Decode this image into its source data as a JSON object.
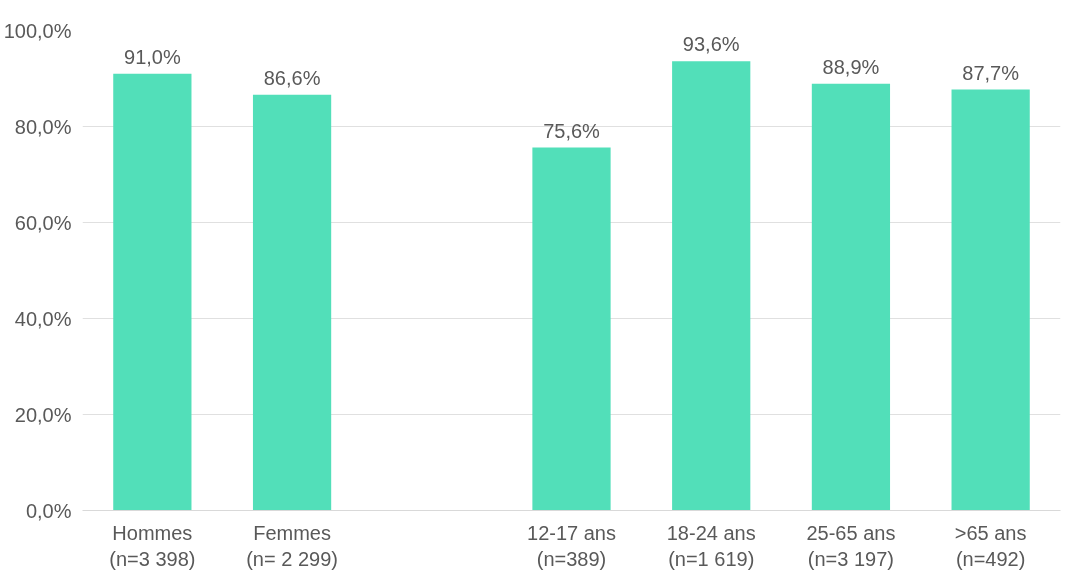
{
  "chart_data": {
    "type": "bar",
    "categories": [
      "Hommes\n(n=3 398)",
      "Femmes\n(n= 2 299)",
      null,
      "12-17 ans\n(n=389)",
      "18-24 ans\n(n=1 619)",
      "25-65 ans\n(n=3 197)",
      ">65 ans\n(n=492)"
    ],
    "values": [
      91.0,
      86.6,
      null,
      75.6,
      93.6,
      88.9,
      87.7
    ],
    "value_labels": [
      "91,0%",
      "86,6%",
      null,
      "75,6%",
      "93,6%",
      "88,9%",
      "87,7%"
    ],
    "color": "#52dfb9",
    "ylim": [
      0,
      100
    ],
    "yticks": [
      {
        "value": 0,
        "label": "0,0%"
      },
      {
        "value": 20,
        "label": "20,0%"
      },
      {
        "value": 40,
        "label": "40,0%"
      },
      {
        "value": 60,
        "label": "60,0%"
      },
      {
        "value": 80,
        "label": "80,0%"
      },
      {
        "value": 100,
        "label": "100,0%"
      }
    ],
    "grid": "y"
  }
}
